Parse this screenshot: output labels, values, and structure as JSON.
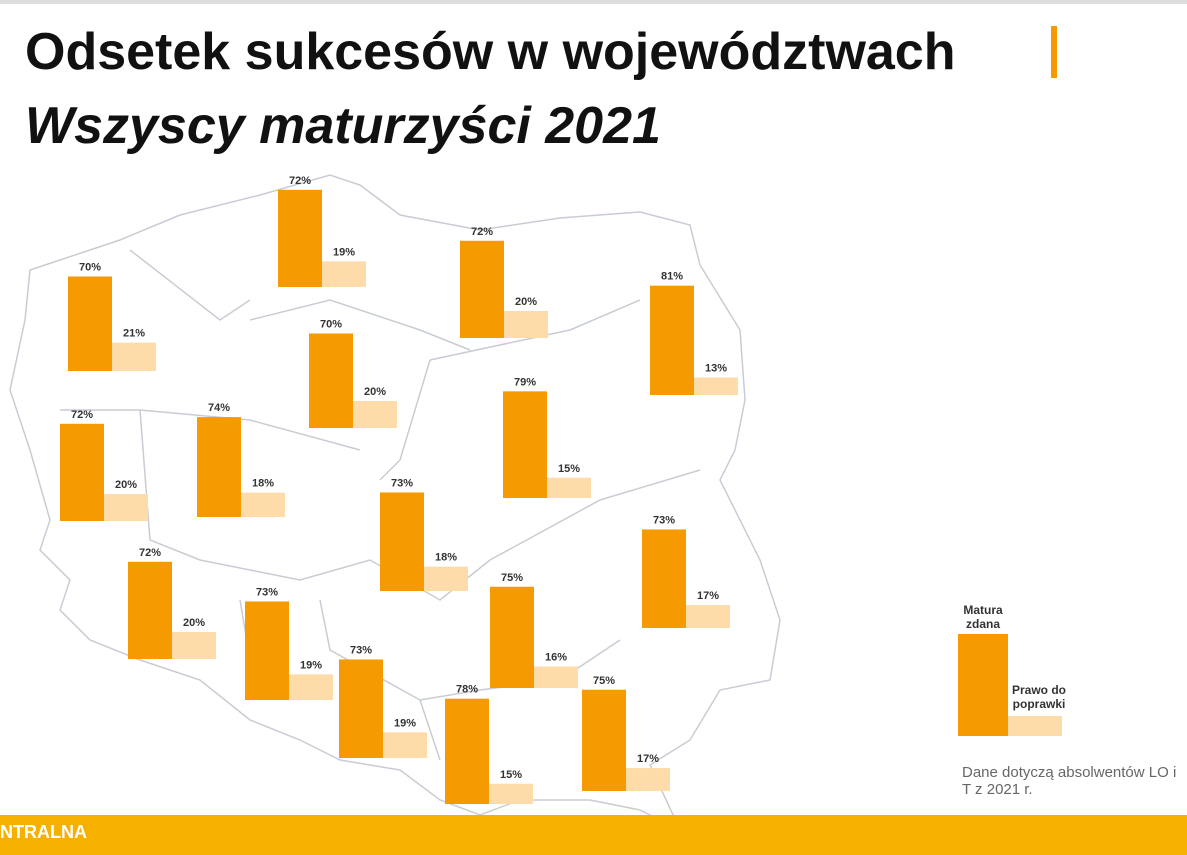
{
  "title": "Odsetek sukcesów w województwach",
  "subtitle": "Wszyscy maturzyści 2021",
  "regions": [
    {
      "values": [
        70,
        21
      ],
      "value_labels": [
        "70%",
        "21%"
      ]
    },
    {
      "values": [
        72,
        19
      ],
      "value_labels": [
        "72%",
        "19%"
      ]
    },
    {
      "values": [
        72,
        20
      ],
      "value_labels": [
        "72%",
        "20%"
      ]
    },
    {
      "values": [
        81,
        13
      ],
      "value_labels": [
        "81%",
        "13%"
      ]
    },
    {
      "values": [
        70,
        20
      ],
      "value_labels": [
        "70%",
        "20%"
      ]
    },
    {
      "values": [
        72,
        20
      ],
      "value_labels": [
        "72%",
        "20%"
      ]
    },
    {
      "values": [
        74,
        18
      ],
      "value_labels": [
        "74%",
        "18%"
      ]
    },
    {
      "values": [
        79,
        15
      ],
      "value_labels": [
        "79%",
        "15%"
      ]
    },
    {
      "values": [
        73,
        18
      ],
      "value_labels": [
        "73%",
        "18%"
      ]
    },
    {
      "values": [
        73,
        17
      ],
      "value_labels": [
        "73%",
        "17%"
      ]
    },
    {
      "values": [
        72,
        20
      ],
      "value_labels": [
        "72%",
        "20%"
      ]
    },
    {
      "values": [
        73,
        19
      ],
      "value_labels": [
        "73%",
        "19%"
      ]
    },
    {
      "values": [
        75,
        16
      ],
      "value_labels": [
        "75%",
        "16%"
      ]
    },
    {
      "values": [
        73,
        19
      ],
      "value_labels": [
        "73%",
        "19%"
      ]
    },
    {
      "values": [
        78,
        15
      ],
      "value_labels": [
        "78%",
        "15%"
      ]
    },
    {
      "values": [
        75,
        17
      ],
      "value_labels": [
        "75%",
        "17%"
      ]
    }
  ],
  "colors": [
    "#f59a00",
    "#fddcaa"
  ],
  "legend": [
    "Matura zdana",
    "Prawo do poprawki"
  ],
  "note": "Dane dotyczą absolwentów LO i T z 2021 r.",
  "footer": "NTRALNA"
}
